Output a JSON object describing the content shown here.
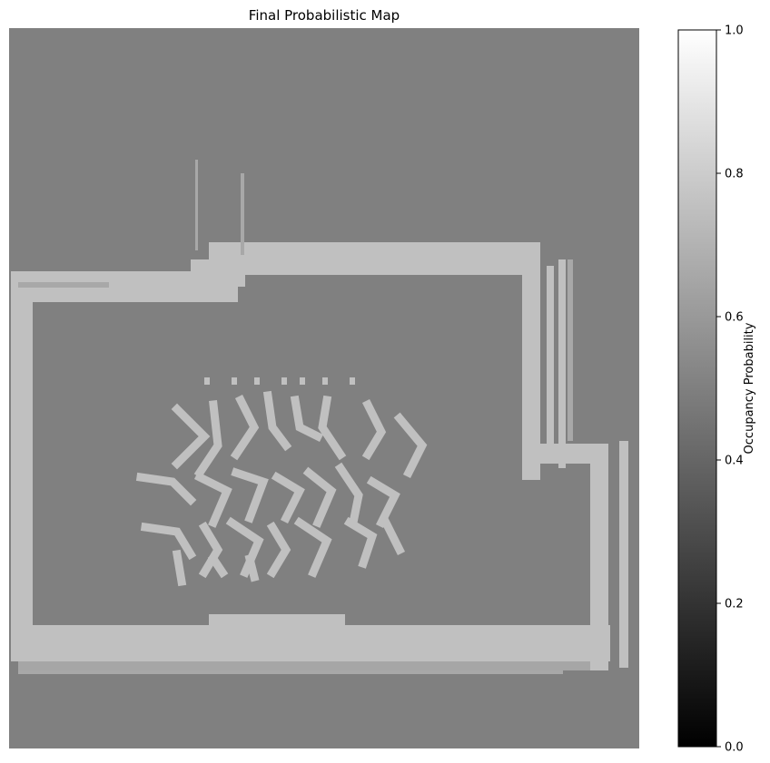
{
  "chart_data": {
    "type": "heatmap",
    "title": "Final Probabilistic Map",
    "colormap": "gray",
    "background_value": 0.5,
    "occupied_value": 0.75,
    "colorbar": {
      "label": "Occupancy Probability",
      "range": [
        0.0,
        1.0
      ],
      "ticks": [
        0.0,
        0.2,
        0.4,
        0.6,
        0.8,
        1.0
      ],
      "tick_labels": [
        "0.0",
        "0.2",
        "0.4",
        "0.6",
        "0.8",
        "1.0"
      ]
    },
    "features": [
      {
        "name": "outer-wall",
        "value": 0.75
      },
      {
        "name": "interior-obstacle-cluster",
        "value": 0.75
      }
    ]
  }
}
